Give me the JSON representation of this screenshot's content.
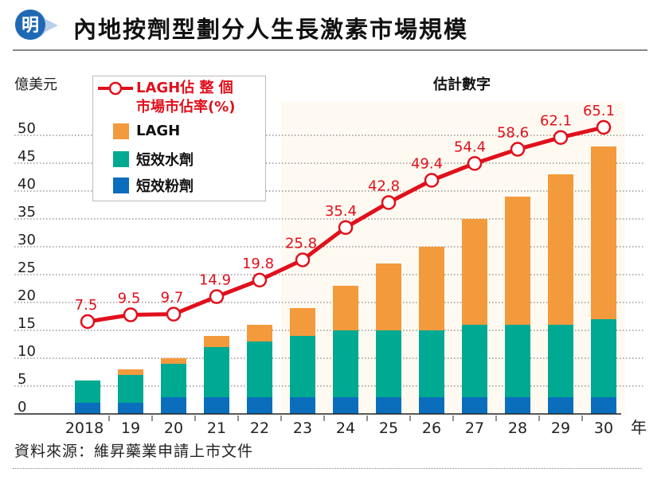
{
  "header": {
    "logo_char": "明",
    "title": "內地按劑型劃分人生長激素市場規模"
  },
  "colors": {
    "lagh": "#f39a3c",
    "short_water": "#00a991",
    "short_powder": "#0a6ebd",
    "line": "#e0101c",
    "logo_blue": "#1f68b3",
    "estimate_bg": "#fffaf1"
  },
  "legend": {
    "line_label_1": "LAGH佔 整 個",
    "line_label_2": "市場市佔率(%)",
    "items": [
      "LAGH",
      "短效水劑",
      "短效粉劑"
    ]
  },
  "footer": {
    "source": "資料來源：維昇藥業申請上市文件"
  },
  "chart_data": {
    "type": "bar",
    "stacked": true,
    "title": "內地按劑型劃分人生長激素市場規模",
    "ylabel": "億美元",
    "xlabel": "年",
    "ylim": [
      0,
      50
    ],
    "yticks": [
      0,
      5,
      10,
      15,
      20,
      25,
      30,
      35,
      40,
      45,
      50
    ],
    "grid": true,
    "legend_position": "top-left",
    "annotation": "估計數字",
    "estimate_from_category": "23",
    "categories": [
      "2018",
      "19",
      "20",
      "21",
      "22",
      "23",
      "24",
      "25",
      "26",
      "27",
      "28",
      "29",
      "30"
    ],
    "series": [
      {
        "name": "短效粉劑",
        "values": [
          2,
          2,
          3,
          3,
          3,
          3,
          3,
          3,
          3,
          3,
          3,
          3,
          3
        ]
      },
      {
        "name": "短效水劑",
        "values": [
          4,
          5,
          6,
          9,
          10,
          11,
          12,
          12,
          12,
          13,
          13,
          13,
          14
        ]
      },
      {
        "name": "LAGH",
        "values": [
          0,
          1,
          1,
          2,
          3,
          5,
          8,
          12,
          15,
          19,
          23,
          27,
          31
        ]
      }
    ],
    "line_series": {
      "name": "LAGH佔整個市場市佔率(%)",
      "values": [
        7.5,
        9.5,
        9.7,
        14.9,
        19.8,
        25.8,
        35.4,
        42.8,
        49.4,
        54.4,
        58.6,
        62.1,
        65.1
      ],
      "labels": [
        "7.5",
        "9.5",
        "9.7",
        "14.9",
        "19.8",
        "25.8",
        "35.4",
        "42.8",
        "49.4",
        "54.4",
        "58.6",
        "62.1",
        "65.1"
      ]
    }
  }
}
